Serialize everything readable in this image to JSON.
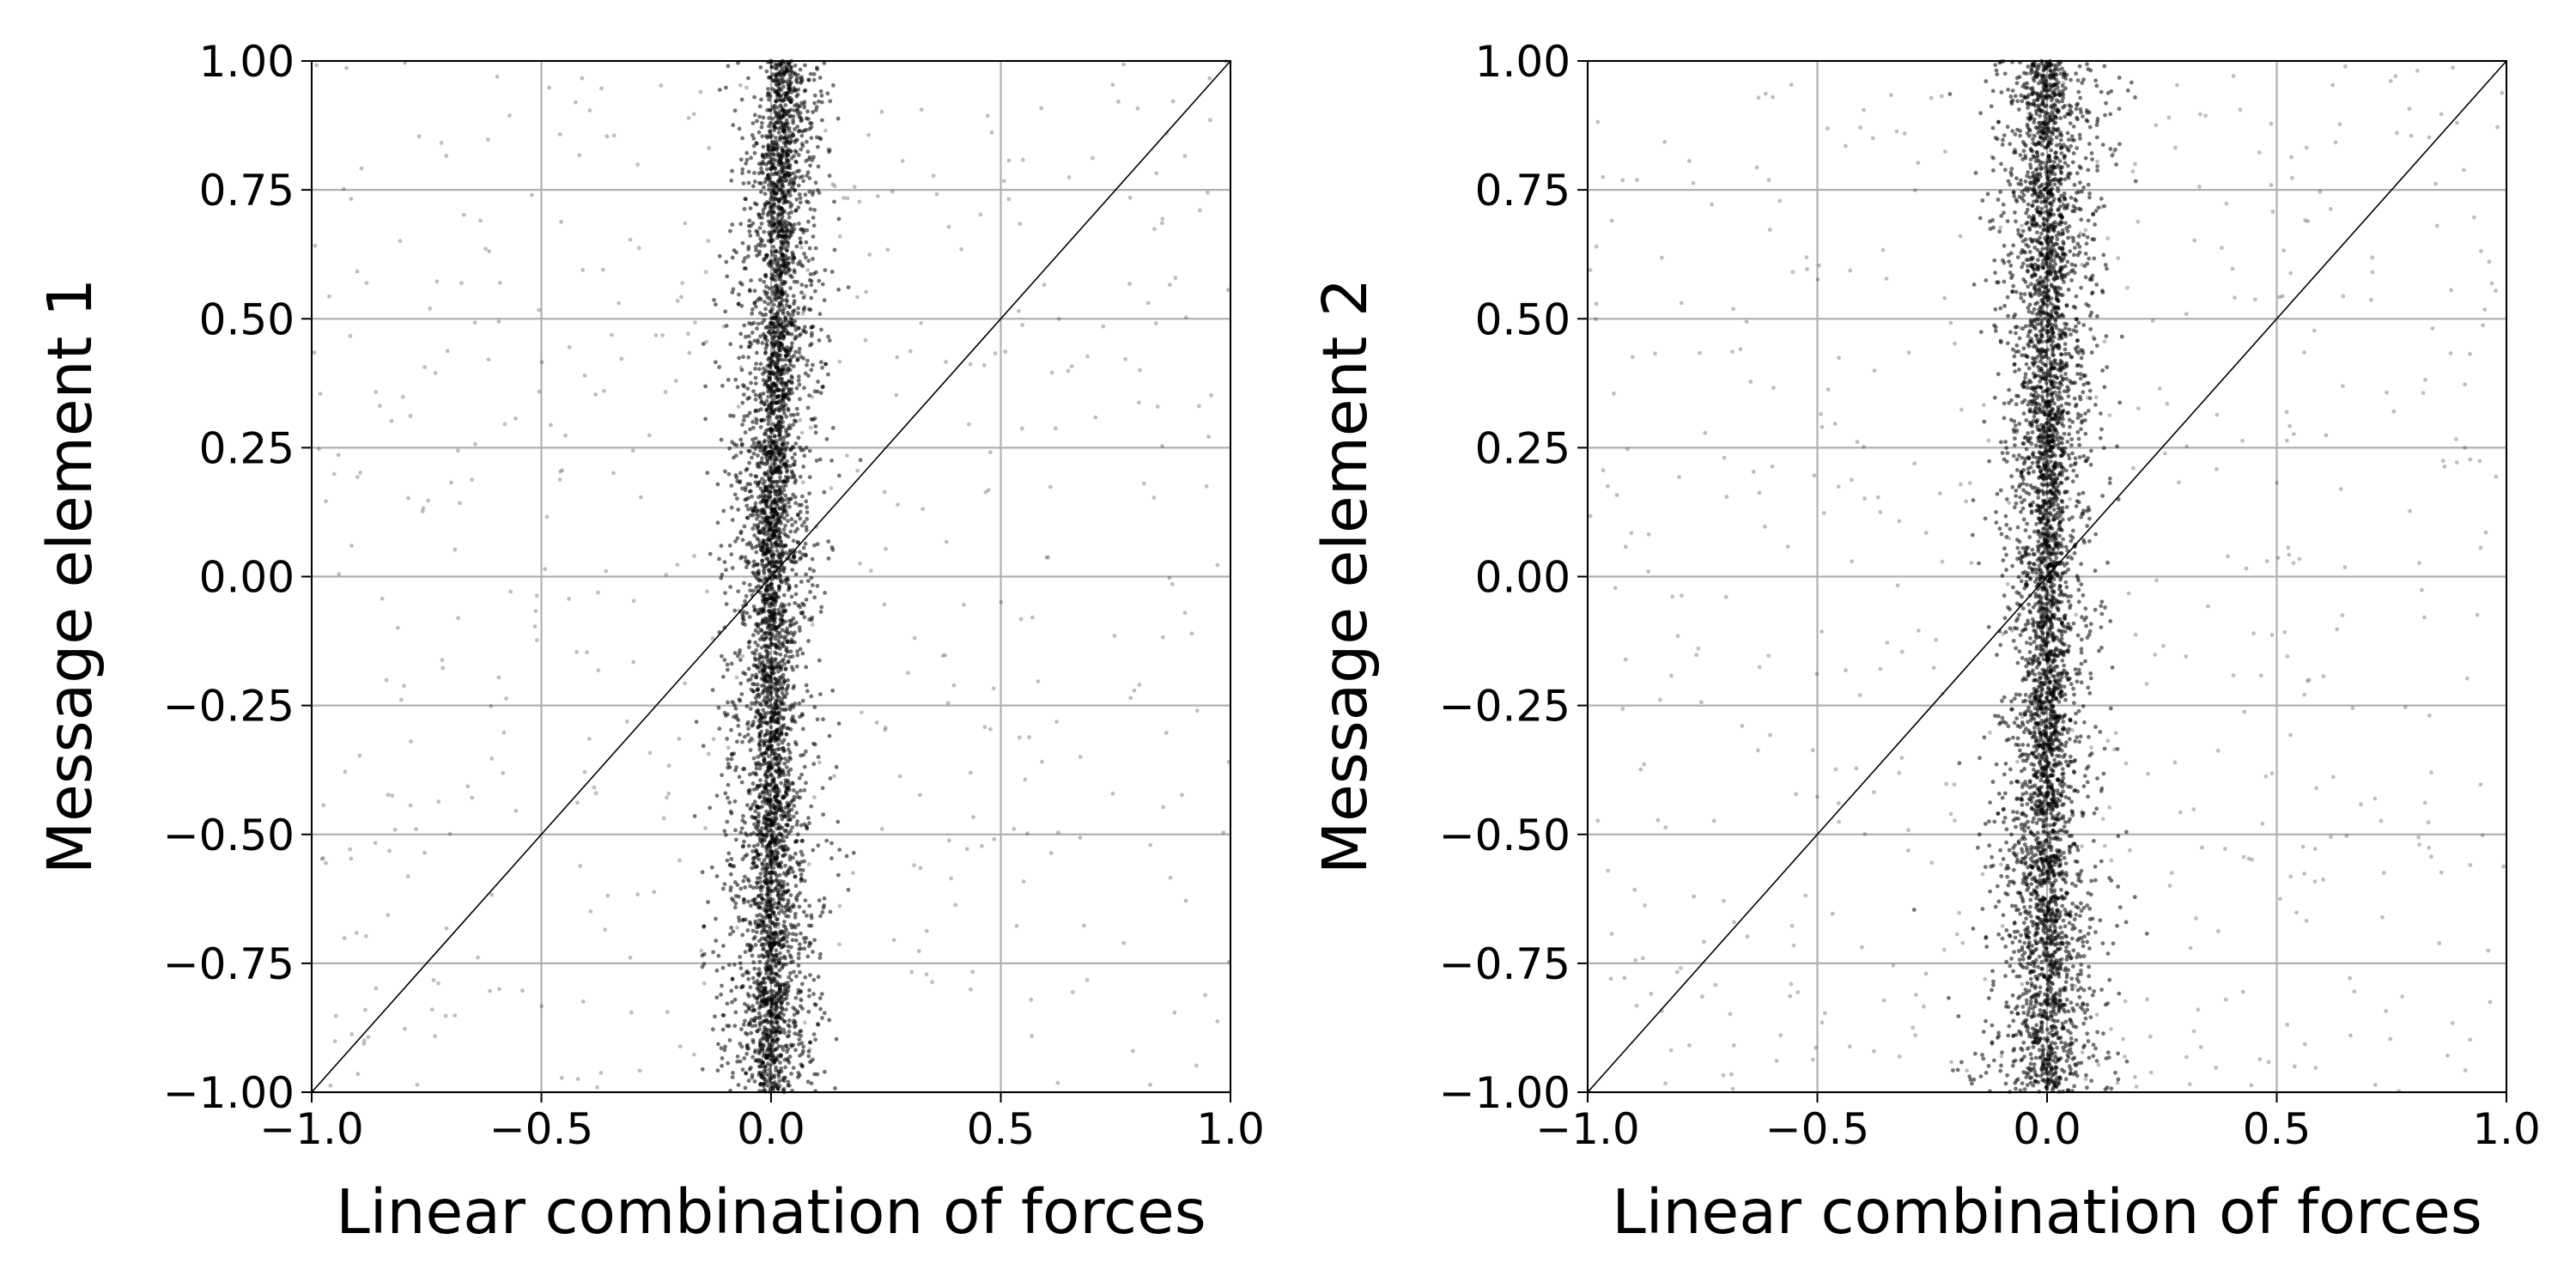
{
  "chart_data": [
    {
      "type": "scatter",
      "title": "",
      "xlabel": "Linear combination of forces",
      "ylabel": "Message element 1",
      "xlim": [
        -1.0,
        1.0
      ],
      "ylim": [
        -1.0,
        1.0
      ],
      "xticks": [
        -1.0,
        -0.5,
        0.0,
        0.5,
        1.0
      ],
      "xtick_labels": [
        "−1.0",
        "−0.5",
        "0.0",
        "0.5",
        "1.0"
      ],
      "yticks": [
        -1.0,
        -0.75,
        -0.5,
        -0.25,
        0.0,
        0.25,
        0.5,
        0.75,
        1.0
      ],
      "ytick_labels": [
        "−1.00",
        "−0.75",
        "−0.50",
        "−0.25",
        "0.00",
        "0.25",
        "0.50",
        "0.75",
        "1.00"
      ],
      "grid": true,
      "reference_line": {
        "x": [
          -1.0,
          1.0
        ],
        "y": [
          -1.0,
          1.0
        ]
      },
      "point_color": "#000000",
      "point_alpha": 0.1,
      "distribution": {
        "x_center_at_y": [
          [
            -1.0,
            0.0
          ],
          [
            0.0,
            0.0
          ],
          [
            1.0,
            0.03
          ]
        ],
        "x_spread_at_y": [
          [
            -1.0,
            0.06
          ],
          [
            0.0,
            0.05
          ],
          [
            1.0,
            0.05
          ]
        ],
        "sparse_background": true
      }
    },
    {
      "type": "scatter",
      "title": "",
      "xlabel": "Linear combination of forces",
      "ylabel": "Message element 2",
      "xlim": [
        -1.0,
        1.0
      ],
      "ylim": [
        -1.0,
        1.0
      ],
      "xticks": [
        -1.0,
        -0.5,
        0.0,
        0.5,
        1.0
      ],
      "xtick_labels": [
        "−1.0",
        "−0.5",
        "0.0",
        "0.5",
        "1.0"
      ],
      "yticks": [
        -1.0,
        -0.75,
        -0.5,
        -0.25,
        0.0,
        0.25,
        0.5,
        0.75,
        1.0
      ],
      "ytick_labels": [
        "−1.00",
        "−0.75",
        "−0.50",
        "−0.25",
        "0.00",
        "0.25",
        "0.50",
        "0.75",
        "1.00"
      ],
      "grid": true,
      "reference_line": {
        "x": [
          -1.0,
          1.0
        ],
        "y": [
          -1.0,
          1.0
        ]
      },
      "point_color": "#000000",
      "point_alpha": 0.1,
      "distribution": {
        "x_center_at_y": [
          [
            -1.0,
            0.0
          ],
          [
            0.0,
            0.0
          ],
          [
            1.0,
            0.0
          ]
        ],
        "x_spread_at_y": [
          [
            -1.0,
            0.08
          ],
          [
            0.0,
            0.05
          ],
          [
            1.0,
            0.07
          ]
        ],
        "sparse_background": true
      }
    }
  ]
}
